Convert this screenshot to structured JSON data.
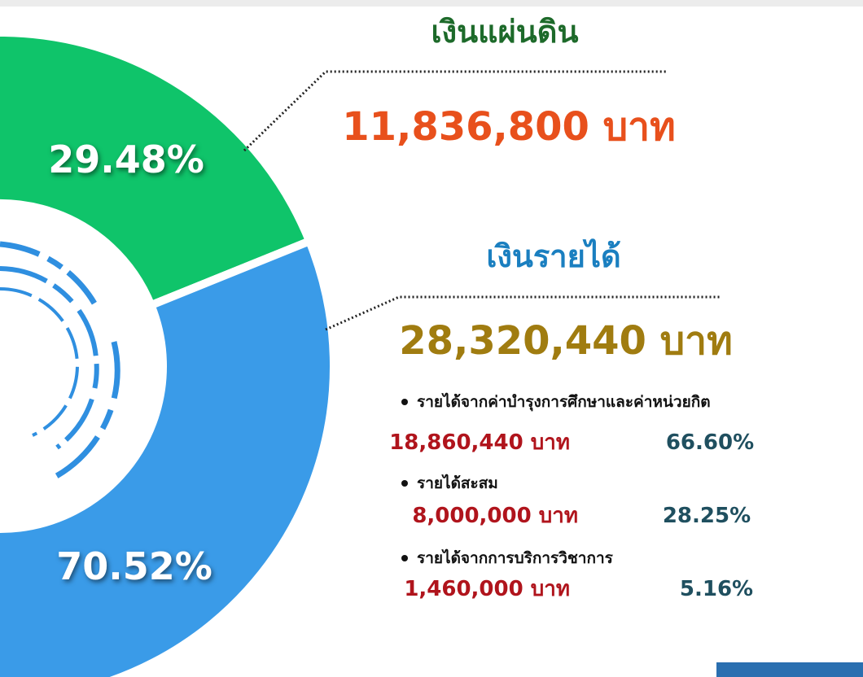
{
  "chart_data": {
    "type": "pie",
    "categories": [
      "เงินแผ่นดิน",
      "เงินรายได้"
    ],
    "values": [
      29.48,
      70.52
    ],
    "value_labels": [
      "29.48%",
      "70.52%"
    ],
    "colors": [
      "#0fc46a",
      "#3a9be8"
    ],
    "amounts": [
      "11,836,800 บาท",
      "28,320,440 บาท"
    ],
    "details": [
      {
        "label": "รายได้จากค่าบำรุงการศึกษาและค่าหน่วยกิต",
        "amount": "18,860,440 บาท",
        "percent": "66.60%"
      },
      {
        "label": "รายได้สะสม",
        "amount": "8,000,000 บาท",
        "percent": "28.25%"
      },
      {
        "label": "รายได้จากการบริการวิชาการ",
        "amount": "1,460,000 บาท",
        "percent": "5.16%"
      }
    ]
  }
}
